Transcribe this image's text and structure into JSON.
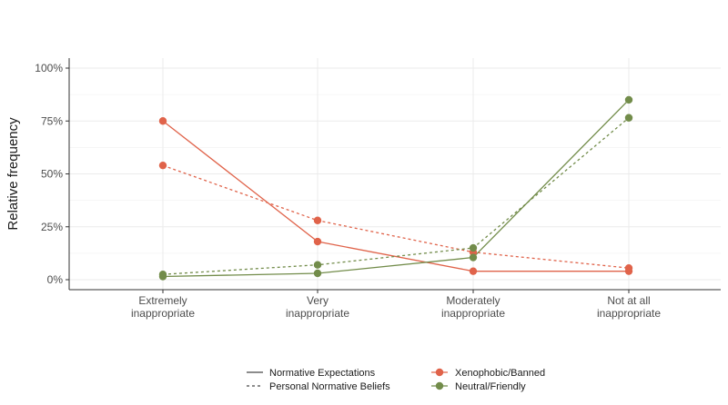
{
  "chart_data": {
    "type": "line",
    "title": "",
    "xlabel": "",
    "ylabel": "Relative frequency",
    "categories": [
      [
        "Extremely",
        "inappropriate"
      ],
      [
        "Very",
        "inappropriate"
      ],
      [
        "Moderately",
        "inappropriate"
      ],
      [
        "Not at all",
        "inappropriate"
      ]
    ],
    "y_ticks": [
      0,
      0.25,
      0.5,
      0.75,
      1.0
    ],
    "y_tick_labels": [
      "0%",
      "25%",
      "50%",
      "75%",
      "100%"
    ],
    "ylim": [
      -0.04,
      1.04
    ],
    "grid": true,
    "series": [
      {
        "name": "Xenophobic/Banned - Normative Expectations",
        "group": "Xenophobic/Banned",
        "linetype": "solid",
        "color": "#e0634a",
        "values": [
          0.75,
          0.18,
          0.04,
          0.04
        ]
      },
      {
        "name": "Xenophobic/Banned - Personal Normative Beliefs",
        "group": "Xenophobic/Banned",
        "linetype": "dashed",
        "color": "#e0634a",
        "values": [
          0.54,
          0.28,
          0.13,
          0.055
        ]
      },
      {
        "name": "Neutral/Friendly - Normative Expectations",
        "group": "Neutral/Friendly",
        "linetype": "solid",
        "color": "#728c4a",
        "values": [
          0.015,
          0.03,
          0.105,
          0.85
        ]
      },
      {
        "name": "Neutral/Friendly - Personal Normative Beliefs",
        "group": "Neutral/Friendly",
        "linetype": "dashed",
        "color": "#728c4a",
        "values": [
          0.025,
          0.07,
          0.15,
          0.765
        ]
      }
    ],
    "legend": {
      "position": "bottom",
      "linetype_items": [
        {
          "label": "Normative Expectations",
          "linetype": "solid"
        },
        {
          "label": "Personal Normative Beliefs",
          "linetype": "dashed"
        }
      ],
      "color_items": [
        {
          "label": "Xenophobic/Banned",
          "color": "#e0634a"
        },
        {
          "label": "Neutral/Friendly",
          "color": "#728c4a"
        }
      ]
    }
  }
}
